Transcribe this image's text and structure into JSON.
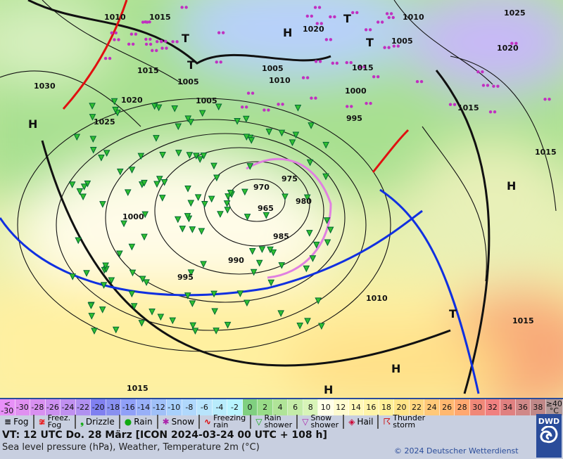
{
  "map": {
    "pressure_labels": [
      "1010",
      "1015",
      "1015",
      "1005",
      "1005",
      "1020",
      "1030",
      "1025",
      "1000",
      "995",
      "990",
      "985",
      "980",
      "975",
      "970",
      "965",
      "1010",
      "1005",
      "1015",
      "1020",
      "1010",
      "1015",
      "1020",
      "1025",
      "1005",
      "1015",
      "995",
      "1000",
      "1015",
      "1010",
      "1015"
    ],
    "centers": {
      "high": "H",
      "low": "T"
    },
    "colors": {
      "cold_front": "#1030e0",
      "warm_front": "#e01010",
      "occlusion": "#e080e0",
      "isobar": "#111111",
      "rain": "#10a010",
      "snow": "#c030c0"
    }
  },
  "temperature_scale": {
    "labels": [
      "<\n-30",
      "-30",
      "-28",
      "-26",
      "-24",
      "-22",
      "-20",
      "-18",
      "-16",
      "-14",
      "-12",
      "-10",
      "-8",
      "-6",
      "-4",
      "-2",
      "0",
      "2",
      "4",
      "6",
      "8",
      "10",
      "12",
      "14",
      "16",
      "18",
      "20",
      "22",
      "24",
      "26",
      "28",
      "30",
      "32",
      "34",
      "36",
      "38",
      "≥40\n°C"
    ],
    "colors": [
      "#e890f8",
      "#e090f0",
      "#d890f0",
      "#cc90f0",
      "#c090f0",
      "#b090f0",
      "#8080f0",
      "#8890f0",
      "#90a0f8",
      "#98b0f8",
      "#a0c0f8",
      "#a8d0fc",
      "#b0d8fc",
      "#b8e4fc",
      "#b8ecfc",
      "#b8f4ff",
      "#80d080",
      "#98dc88",
      "#b0e498",
      "#c4eca8",
      "#d8f4b8",
      "#ffffe8",
      "#fffcd0",
      "#fff8b8",
      "#fff4a8",
      "#fff098",
      "#ffe488",
      "#ffd880",
      "#ffc878",
      "#ffb870",
      "#ffa870",
      "#f08878",
      "#f08080",
      "#e08080",
      "#d08888",
      "#c08888",
      "#b09898"
    ]
  },
  "legend": [
    {
      "icon": "fog-icon",
      "label": "Fog"
    },
    {
      "icon": "freezing-fog-icon",
      "label": "Freez.\nFog"
    },
    {
      "icon": "drizzle-icon",
      "label": "Drizzle"
    },
    {
      "icon": "rain-icon",
      "label": "Rain"
    },
    {
      "icon": "snow-icon",
      "label": "Snow"
    },
    {
      "icon": "freezing-rain-icon",
      "label": "Freezing\nrain"
    },
    {
      "icon": "rain-shower-icon",
      "label": "Rain\nshower"
    },
    {
      "icon": "snow-shower-icon",
      "label": "Snow\nshower"
    },
    {
      "icon": "hail-icon",
      "label": "Hail"
    },
    {
      "icon": "thunderstorm-icon",
      "label": "Thunder\nstorm"
    }
  ],
  "footer": {
    "valid_time": "VT: 12 UTC Do.  28 März [ICON 2024-03-24  00 UTC + 108 h]",
    "subtitle": "Sea level pressure (hPa), Weather, Temperature 2m (°C)",
    "copyright": "© 2024 Deutscher Wetterdienst",
    "logo": "DWD"
  }
}
